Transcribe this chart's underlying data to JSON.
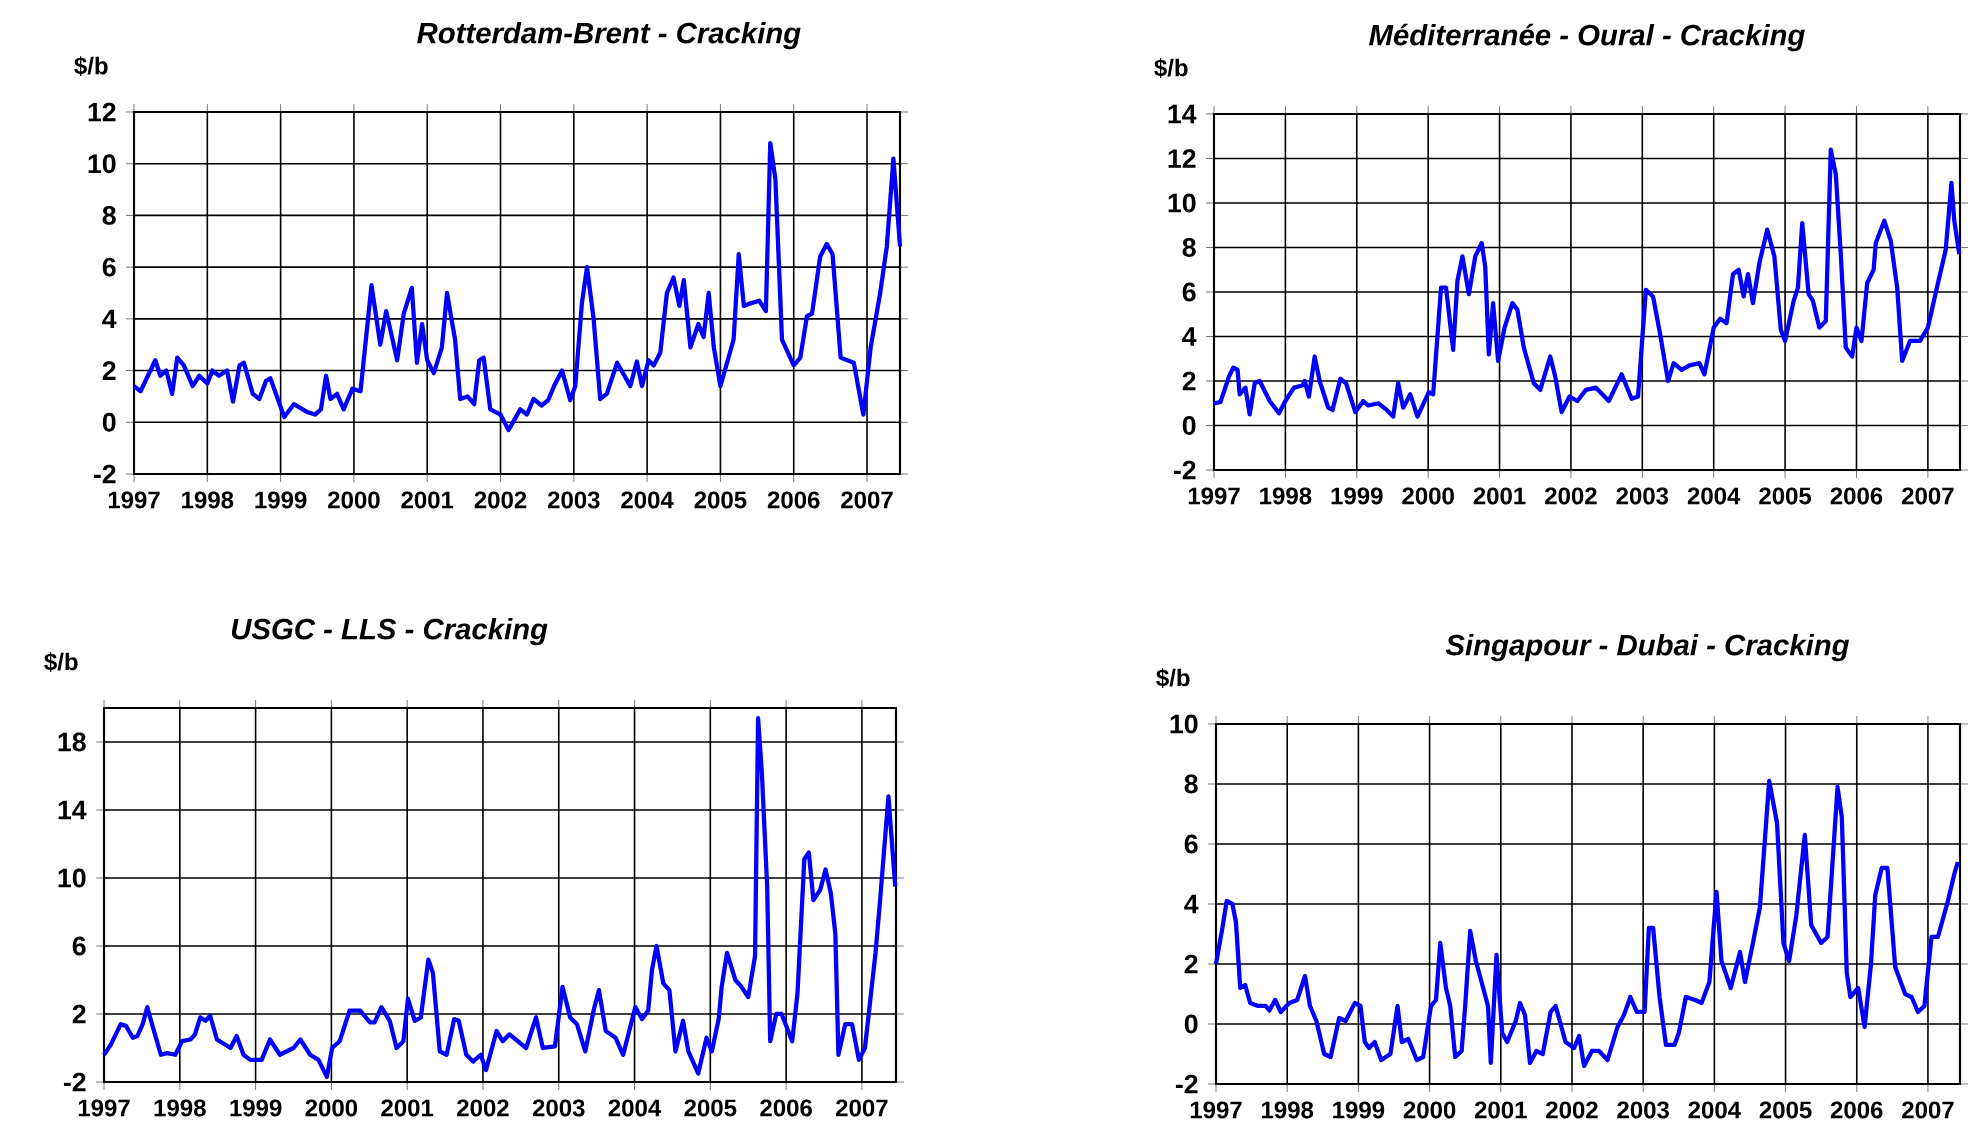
{
  "chart_data": [
    {
      "type": "line",
      "title": "Rotterdam-Brent - Cracking",
      "ylabel": "$/b",
      "xlim": [
        1997,
        2007.45
      ],
      "ylim": [
        -2,
        12
      ],
      "xticks": [
        1997,
        1998,
        1999,
        2000,
        2001,
        2002,
        2003,
        2004,
        2005,
        2006,
        2007
      ],
      "yticks": [
        -2,
        0,
        2,
        4,
        6,
        8,
        10,
        12
      ],
      "grid": true,
      "x": [
        1997.0,
        1997.09,
        1997.29,
        1997.36,
        1997.44,
        1997.52,
        1997.59,
        1997.68,
        1997.8,
        1997.89,
        1998.0,
        1998.07,
        1998.16,
        1998.27,
        1998.35,
        1998.44,
        1998.5,
        1998.62,
        1998.71,
        1998.8,
        1998.86,
        1999.05,
        1999.18,
        1999.36,
        1999.47,
        1999.55,
        1999.62,
        1999.68,
        1999.77,
        1999.86,
        1999.98,
        2000.09,
        2000.24,
        2000.36,
        2000.44,
        2000.59,
        2000.68,
        2000.79,
        2000.86,
        2000.93,
        2001.0,
        2001.09,
        2001.2,
        2001.27,
        2001.38,
        2001.45,
        2001.55,
        2001.64,
        2001.71,
        2001.77,
        2001.86,
        2002.0,
        2002.11,
        2002.27,
        2002.36,
        2002.45,
        2002.56,
        2002.65,
        2002.73,
        2002.84,
        2002.95,
        2003.02,
        2003.11,
        2003.18,
        2003.27,
        2003.36,
        2003.45,
        2003.59,
        2003.77,
        2003.86,
        2003.93,
        2004.02,
        2004.09,
        2004.18,
        2004.27,
        2004.36,
        2004.44,
        2004.5,
        2004.59,
        2004.7,
        2004.77,
        2004.84,
        2004.91,
        2005.0,
        2005.18,
        2005.25,
        2005.32,
        2005.41,
        2005.53,
        2005.62,
        2005.68,
        2005.75,
        2005.84,
        2006.0,
        2006.09,
        2006.18,
        2006.25,
        2006.36,
        2006.45,
        2006.53,
        2006.64,
        2006.82,
        2006.95,
        2007.05,
        2007.18,
        2007.27,
        2007.36,
        2007.45
      ],
      "series": [
        {
          "color": "#0000ff",
          "values": [
            1.4,
            1.2,
            2.4,
            1.8,
            2.0,
            1.1,
            2.5,
            2.2,
            1.4,
            1.8,
            1.5,
            2.0,
            1.8,
            2.0,
            0.8,
            2.2,
            2.3,
            1.1,
            0.9,
            1.6,
            1.7,
            0.2,
            0.7,
            0.4,
            0.3,
            0.5,
            1.8,
            0.9,
            1.1,
            0.5,
            1.3,
            1.2,
            5.3,
            3.0,
            4.3,
            2.4,
            4.2,
            5.2,
            2.3,
            3.8,
            2.4,
            1.9,
            2.9,
            5.0,
            3.2,
            0.9,
            1.0,
            0.7,
            2.4,
            2.5,
            0.5,
            0.3,
            -0.3,
            0.5,
            0.3,
            0.9,
            0.65,
            0.85,
            1.4,
            2.0,
            0.85,
            1.4,
            4.6,
            6.0,
            4.0,
            0.9,
            1.1,
            2.3,
            1.4,
            2.35,
            1.4,
            2.4,
            2.2,
            2.7,
            5.0,
            5.6,
            4.5,
            5.5,
            2.9,
            3.8,
            3.3,
            5.0,
            2.9,
            1.4,
            3.2,
            6.5,
            4.5,
            4.6,
            4.7,
            4.3,
            10.8,
            9.4,
            3.2,
            2.2,
            2.5,
            4.1,
            4.2,
            6.4,
            6.9,
            6.5,
            2.5,
            2.3,
            0.3,
            2.9,
            5.0,
            6.8,
            10.2,
            6.8
          ]
        }
      ]
    },
    {
      "type": "line",
      "title": "Méditerranée - Oural - Cracking",
      "ylabel": "$/b",
      "xlim": [
        1997,
        2007.45
      ],
      "ylim": [
        -2,
        14
      ],
      "xticks": [
        1997,
        1998,
        1999,
        2000,
        2001,
        2002,
        2003,
        2004,
        2005,
        2006,
        2007
      ],
      "yticks": [
        -2,
        0,
        2,
        4,
        6,
        8,
        10,
        12,
        14
      ],
      "grid": true,
      "x": [
        1997.0,
        1997.09,
        1997.21,
        1997.27,
        1997.33,
        1997.36,
        1997.44,
        1997.5,
        1997.57,
        1997.64,
        1997.78,
        1997.91,
        1998.0,
        1998.12,
        1998.24,
        1998.27,
        1998.33,
        1998.41,
        1998.48,
        1998.6,
        1998.66,
        1998.77,
        1998.85,
        1998.98,
        1999.09,
        1999.16,
        1999.3,
        1999.42,
        1999.51,
        1999.58,
        1999.65,
        1999.75,
        1999.85,
        2000.01,
        2000.07,
        2000.18,
        2000.25,
        2000.35,
        2000.41,
        2000.48,
        2000.57,
        2000.66,
        2000.75,
        2000.8,
        2000.85,
        2000.91,
        2000.98,
        2001.07,
        2001.18,
        2001.25,
        2001.34,
        2001.48,
        2001.57,
        2001.71,
        2001.78,
        2001.87,
        2001.98,
        2002.09,
        2002.21,
        2002.35,
        2002.44,
        2002.53,
        2002.71,
        2002.85,
        2002.94,
        2003.05,
        2003.15,
        2003.25,
        2003.36,
        2003.44,
        2003.55,
        2003.66,
        2003.8,
        2003.87,
        2004.0,
        2004.09,
        2004.18,
        2004.27,
        2004.35,
        2004.42,
        2004.48,
        2004.55,
        2004.64,
        2004.75,
        2004.85,
        2004.94,
        2005.0,
        2005.12,
        2005.18,
        2005.24,
        2005.33,
        2005.39,
        2005.48,
        2005.57,
        2005.64,
        2005.71,
        2005.78,
        2005.85,
        2005.94,
        2006.0,
        2006.07,
        2006.15,
        2006.24,
        2006.27,
        2006.39,
        2006.48,
        2006.57,
        2006.64,
        2006.75,
        2006.89,
        2007.0,
        2007.12,
        2007.25,
        2007.33,
        2007.37,
        2007.44
      ],
      "series": [
        {
          "color": "#0000ff",
          "values": [
            1.0,
            1.05,
            2.2,
            2.6,
            2.5,
            1.4,
            1.7,
            0.5,
            1.9,
            2.0,
            1.1,
            0.55,
            1.1,
            1.7,
            1.8,
            2.0,
            1.3,
            3.1,
            2.0,
            0.8,
            0.7,
            2.1,
            1.9,
            0.6,
            1.1,
            0.9,
            1.0,
            0.7,
            0.4,
            1.9,
            0.8,
            1.4,
            0.4,
            1.5,
            1.4,
            6.2,
            6.2,
            3.4,
            6.5,
            7.6,
            5.9,
            7.6,
            8.2,
            7.1,
            3.2,
            5.5,
            2.9,
            4.4,
            5.5,
            5.2,
            3.5,
            1.9,
            1.6,
            3.1,
            2.2,
            0.6,
            1.3,
            1.1,
            1.6,
            1.7,
            1.4,
            1.1,
            2.3,
            1.2,
            1.3,
            6.1,
            5.8,
            4.1,
            2.0,
            2.8,
            2.5,
            2.7,
            2.8,
            2.3,
            4.4,
            4.8,
            4.6,
            6.8,
            7.0,
            5.8,
            6.8,
            5.5,
            7.3,
            8.8,
            7.6,
            4.3,
            3.8,
            5.6,
            6.2,
            9.1,
            5.9,
            5.6,
            4.4,
            4.7,
            12.4,
            11.3,
            7.7,
            3.5,
            3.1,
            4.4,
            3.8,
            6.4,
            7.0,
            8.2,
            9.2,
            8.3,
            6.2,
            2.9,
            3.8,
            3.8,
            4.4,
            6.1,
            7.9,
            10.9,
            9.2,
            7.7
          ]
        }
      ]
    },
    {
      "type": "line",
      "title": "USGC - LLS - Cracking",
      "ylabel": "$/b",
      "xlim": [
        1997,
        2007.45
      ],
      "ylim": [
        -2,
        20
      ],
      "xticks": [
        1997,
        1998,
        1999,
        2000,
        2001,
        2002,
        2003,
        2004,
        2005,
        2006,
        2007
      ],
      "yticks": [
        -2,
        2,
        6,
        10,
        14,
        18
      ],
      "grid": true,
      "x": [
        1997.0,
        1997.09,
        1997.22,
        1997.29,
        1997.38,
        1997.44,
        1997.51,
        1997.57,
        1997.64,
        1997.75,
        1997.83,
        1997.94,
        1998.03,
        1998.14,
        1998.2,
        1998.27,
        1998.34,
        1998.4,
        1998.49,
        1998.67,
        1998.75,
        1998.84,
        1998.93,
        1999.08,
        1999.19,
        1999.32,
        1999.5,
        1999.59,
        1999.72,
        1999.83,
        1999.94,
        2000.01,
        2000.11,
        2000.24,
        2000.38,
        2000.51,
        2000.57,
        2000.66,
        2000.77,
        2000.86,
        2000.95,
        2001.01,
        2001.1,
        2001.18,
        2001.28,
        2001.34,
        2001.43,
        2001.52,
        2001.62,
        2001.68,
        2001.78,
        2001.87,
        2001.97,
        2002.04,
        2002.18,
        2002.26,
        2002.35,
        2002.57,
        2002.7,
        2002.79,
        2002.95,
        2003.05,
        2003.15,
        2003.24,
        2003.35,
        2003.47,
        2003.53,
        2003.62,
        2003.75,
        2003.85,
        2004.01,
        2004.1,
        2004.18,
        2004.23,
        2004.29,
        2004.38,
        2004.46,
        2004.54,
        2004.64,
        2004.71,
        2004.84,
        2004.95,
        2005.02,
        2005.11,
        2005.15,
        2005.22,
        2005.33,
        2005.41,
        2005.5,
        2005.59,
        2005.63,
        2005.68,
        2005.75,
        2005.79,
        2005.87,
        2005.94,
        2006.08,
        2006.15,
        2006.24,
        2006.3,
        2006.36,
        2006.45,
        2006.52,
        2006.59,
        2006.65,
        2006.69,
        2006.78,
        2006.87,
        2006.96,
        2007.04,
        2007.18,
        2007.24,
        2007.35,
        2007.44
      ],
      "series": [
        {
          "color": "#0000ff",
          "values": [
            -0.4,
            0.2,
            1.4,
            1.3,
            0.6,
            0.7,
            1.4,
            2.4,
            1.3,
            -0.4,
            -0.3,
            -0.4,
            0.4,
            0.5,
            0.8,
            1.8,
            1.6,
            1.9,
            0.5,
            0.0,
            0.7,
            -0.4,
            -0.7,
            -0.7,
            0.5,
            -0.4,
            0.0,
            0.5,
            -0.4,
            -0.7,
            -1.7,
            0.0,
            0.4,
            2.2,
            2.2,
            1.5,
            1.5,
            2.4,
            1.6,
            0.0,
            0.4,
            2.9,
            1.6,
            1.8,
            5.2,
            4.4,
            -0.2,
            -0.4,
            1.7,
            1.6,
            -0.4,
            -0.8,
            -0.4,
            -1.3,
            1.0,
            0.4,
            0.8,
            0.0,
            1.8,
            0.0,
            0.1,
            3.6,
            1.8,
            1.4,
            -0.2,
            2.4,
            3.4,
            1.0,
            0.6,
            -0.4,
            2.4,
            1.7,
            2.2,
            4.6,
            6.0,
            3.8,
            3.4,
            -0.2,
            1.6,
            -0.2,
            -1.5,
            0.6,
            -0.2,
            1.7,
            3.6,
            5.6,
            4.0,
            3.6,
            3.0,
            5.4,
            19.4,
            16.2,
            9.5,
            0.4,
            2.0,
            2.0,
            0.4,
            3.2,
            11.1,
            11.5,
            8.7,
            9.3,
            10.5,
            9.1,
            6.7,
            -0.4,
            1.4,
            1.4,
            -0.7,
            0.0,
            5.6,
            8.7,
            14.8,
            9.5
          ]
        }
      ]
    },
    {
      "type": "line",
      "title": "Singapour - Dubai - Cracking",
      "ylabel": "$/b",
      "xlim": [
        1997,
        2007.45
      ],
      "ylim": [
        -2,
        10
      ],
      "xticks": [
        1997,
        1998,
        1999,
        2000,
        2001,
        2002,
        2003,
        2004,
        2005,
        2006,
        2007
      ],
      "yticks": [
        -2,
        0,
        2,
        4,
        6,
        8,
        10
      ],
      "grid": true,
      "x": [
        1997.0,
        1997.09,
        1997.15,
        1997.23,
        1997.28,
        1997.34,
        1997.41,
        1997.48,
        1997.59,
        1997.7,
        1997.75,
        1997.83,
        1997.91,
        1998.03,
        1998.14,
        1998.25,
        1998.32,
        1998.41,
        1998.52,
        1998.61,
        1998.73,
        1998.82,
        1998.95,
        1999.03,
        1999.09,
        1999.15,
        1999.23,
        1999.32,
        1999.45,
        1999.55,
        1999.61,
        1999.7,
        1999.82,
        1999.91,
        2000.02,
        2000.09,
        2000.15,
        2000.23,
        2000.29,
        2000.36,
        2000.45,
        2000.5,
        2000.57,
        2000.65,
        2000.73,
        2000.82,
        2000.86,
        2000.94,
        2001.02,
        2001.09,
        2001.21,
        2001.27,
        2001.34,
        2001.41,
        2001.5,
        2001.59,
        2001.7,
        2001.77,
        2001.91,
        2002.03,
        2002.1,
        2002.17,
        2002.28,
        2002.38,
        2002.5,
        2002.64,
        2002.73,
        2002.82,
        2002.91,
        2003.02,
        2003.08,
        2003.14,
        2003.23,
        2003.32,
        2003.44,
        2003.5,
        2003.6,
        2003.73,
        2003.82,
        2003.93,
        2004.03,
        2004.1,
        2004.23,
        2004.36,
        2004.43,
        2004.55,
        2004.64,
        2004.77,
        2004.88,
        2004.97,
        2005.05,
        2005.15,
        2005.27,
        2005.36,
        2005.5,
        2005.59,
        2005.68,
        2005.73,
        2005.79,
        2005.86,
        2005.91,
        2006.02,
        2006.11,
        2006.2,
        2006.26,
        2006.35,
        2006.43,
        2006.54,
        2006.68,
        2006.77,
        2006.86,
        2006.95,
        2007.05,
        2007.14,
        2007.28,
        2007.37,
        2007.42
      ],
      "series": [
        {
          "color": "#0000ff",
          "values": [
            2.0,
            3.2,
            4.1,
            4.0,
            3.4,
            1.2,
            1.3,
            0.7,
            0.6,
            0.6,
            0.45,
            0.8,
            0.4,
            0.7,
            0.8,
            1.6,
            0.6,
            0.1,
            -1.0,
            -1.1,
            0.2,
            0.1,
            0.7,
            0.6,
            -0.6,
            -0.8,
            -0.6,
            -1.2,
            -1.0,
            0.6,
            -0.6,
            -0.5,
            -1.2,
            -1.1,
            0.6,
            0.8,
            2.7,
            1.2,
            0.6,
            -1.1,
            -0.9,
            0.6,
            3.1,
            2.1,
            1.4,
            0.6,
            -1.3,
            2.3,
            -0.3,
            -0.6,
            0.1,
            0.7,
            0.3,
            -1.3,
            -0.9,
            -1.0,
            0.4,
            0.6,
            -0.6,
            -0.8,
            -0.4,
            -1.4,
            -0.9,
            -0.9,
            -1.2,
            -0.1,
            0.3,
            0.9,
            0.4,
            0.4,
            3.2,
            3.2,
            0.9,
            -0.7,
            -0.7,
            -0.3,
            0.9,
            0.8,
            0.7,
            1.4,
            4.4,
            2.1,
            1.2,
            2.4,
            1.4,
            2.8,
            3.9,
            8.1,
            6.7,
            2.7,
            2.1,
            3.6,
            6.3,
            3.3,
            2.7,
            2.9,
            6.1,
            7.9,
            6.9,
            1.7,
            0.9,
            1.2,
            -0.1,
            2.0,
            4.3,
            5.2,
            5.2,
            1.9,
            1.0,
            0.9,
            0.4,
            0.6,
            2.9,
            2.9,
            4.1,
            5.0,
            5.4
          ]
        }
      ]
    }
  ]
}
